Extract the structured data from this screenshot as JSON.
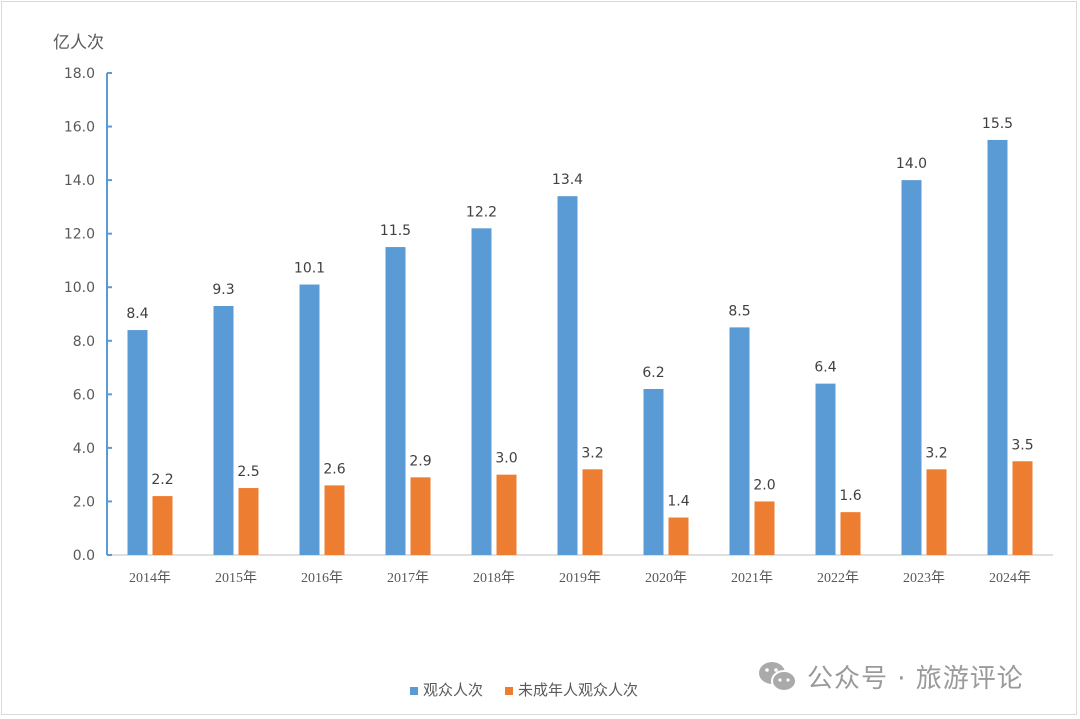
{
  "chart_data": {
    "type": "bar",
    "ylabel": "亿人次",
    "ylim": [
      0,
      18
    ],
    "yticks": [
      "0.0",
      "2.0",
      "4.0",
      "6.0",
      "8.0",
      "10.0",
      "12.0",
      "14.0",
      "16.0",
      "18.0"
    ],
    "categories": [
      "2014年",
      "2015年",
      "2016年",
      "2017年",
      "2018年",
      "2019年",
      "2020年",
      "2021年",
      "2022年",
      "2023年",
      "2024年"
    ],
    "series": [
      {
        "name": "观众人次",
        "color": "#5b9bd5",
        "values": [
          8.4,
          9.3,
          10.1,
          11.5,
          12.2,
          13.4,
          6.2,
          8.5,
          6.4,
          14.0,
          15.5
        ]
      },
      {
        "name": "未成年人观众人次",
        "color": "#ed7d31",
        "values": [
          2.2,
          2.5,
          2.6,
          2.9,
          3.0,
          3.2,
          1.4,
          2.0,
          1.6,
          3.2,
          3.5
        ]
      }
    ],
    "grid": false,
    "legend_position": "bottom"
  },
  "watermark": {
    "text": "公众号 · 旅游评论",
    "icon": "wechat-icon"
  }
}
